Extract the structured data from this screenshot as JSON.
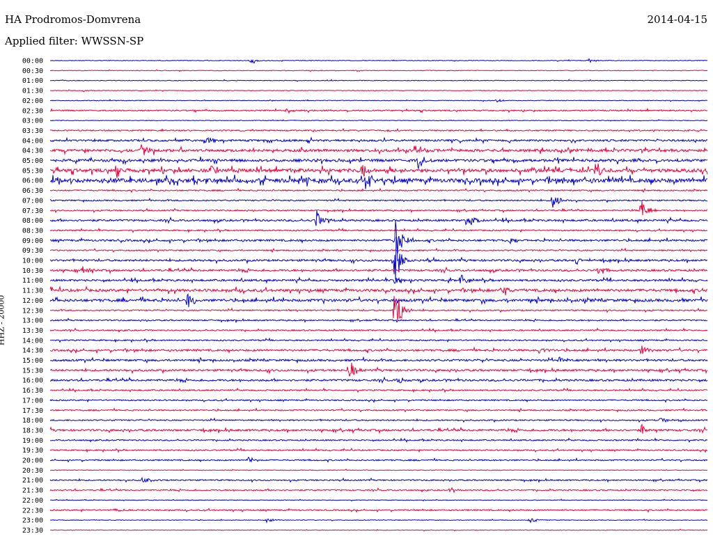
{
  "header": {
    "station": "HA Prodromos-Domvrena",
    "date": "2014-04-15",
    "filter": "Applied filter: WWSSN-SP"
  },
  "channel_label": "HHZ - 20000",
  "colors": {
    "even_trace": "#0000cc",
    "odd_trace": "#e8003a"
  },
  "chart_data": {
    "type": "line",
    "title": "HA Prodromos-Domvrena",
    "subtitle": "Applied filter: WWSSN-SP",
    "ylabel": "HHZ - 20000",
    "xlabel": "",
    "grid": false,
    "legend": "none",
    "rows": [
      "00:00",
      "00:30",
      "01:00",
      "01:30",
      "02:00",
      "02:30",
      "03:00",
      "03:30",
      "04:00",
      "04:30",
      "05:00",
      "05:30",
      "06:00",
      "06:30",
      "07:00",
      "07:30",
      "08:00",
      "08:30",
      "09:00",
      "09:30",
      "10:00",
      "10:30",
      "11:00",
      "11:30",
      "12:00",
      "12:30",
      "13:00",
      "13:30",
      "14:00",
      "14:30",
      "15:00",
      "15:30",
      "16:00",
      "16:30",
      "17:00",
      "17:30",
      "18:00",
      "18:30",
      "19:00",
      "19:30",
      "20:00",
      "20:30",
      "21:00",
      "21:30",
      "22:00",
      "22:30",
      "23:00",
      "23:30"
    ],
    "noise_level": [
      1,
      1,
      1,
      1,
      1,
      2,
      1,
      2,
      3,
      4,
      4,
      5,
      6,
      2,
      2,
      2,
      3,
      2,
      3,
      2,
      3,
      3,
      3,
      4,
      4,
      2,
      2,
      2,
      2,
      3,
      3,
      3,
      3,
      2,
      2,
      2,
      2,
      3,
      2,
      2,
      2,
      1,
      2,
      2,
      1,
      2,
      1,
      1
    ],
    "events": [
      {
        "row": "00:00",
        "pos": 0.305,
        "amp": 5
      },
      {
        "row": "00:00",
        "pos": 0.82,
        "amp": 3
      },
      {
        "row": "01:30",
        "pos": 0.05,
        "amp": 2
      },
      {
        "row": "02:00",
        "pos": 0.68,
        "amp": 3
      },
      {
        "row": "02:30",
        "pos": 0.36,
        "amp": 6
      },
      {
        "row": "04:00",
        "pos": 0.235,
        "amp": 9
      },
      {
        "row": "04:30",
        "pos": 0.14,
        "amp": 14
      },
      {
        "row": "04:30",
        "pos": 0.555,
        "amp": 12
      },
      {
        "row": "05:00",
        "pos": 0.56,
        "amp": 14
      },
      {
        "row": "05:30",
        "pos": 0.1,
        "amp": 12
      },
      {
        "row": "05:30",
        "pos": 0.245,
        "amp": 12
      },
      {
        "row": "05:30",
        "pos": 0.475,
        "amp": 10
      },
      {
        "row": "05:30",
        "pos": 0.83,
        "amp": 11
      },
      {
        "row": "06:00",
        "pos": 0.38,
        "amp": 9
      },
      {
        "row": "06:00",
        "pos": 0.48,
        "amp": 18
      },
      {
        "row": "07:00",
        "pos": 0.765,
        "amp": 12
      },
      {
        "row": "07:30",
        "pos": 0.9,
        "amp": 18
      },
      {
        "row": "08:00",
        "pos": 0.405,
        "amp": 16
      },
      {
        "row": "08:00",
        "pos": 0.635,
        "amp": 18
      },
      {
        "row": "09:00",
        "pos": 0.525,
        "amp": 38
      },
      {
        "row": "09:00",
        "pos": 0.7,
        "amp": 5
      },
      {
        "row": "10:00",
        "pos": 0.525,
        "amp": 40
      },
      {
        "row": "10:00",
        "pos": 0.8,
        "amp": 8
      },
      {
        "row": "10:30",
        "pos": 0.05,
        "amp": 7
      },
      {
        "row": "10:30",
        "pos": 0.835,
        "amp": 8
      },
      {
        "row": "11:00",
        "pos": 0.525,
        "amp": 14
      },
      {
        "row": "11:00",
        "pos": 0.625,
        "amp": 10
      },
      {
        "row": "11:30",
        "pos": 0.69,
        "amp": 7
      },
      {
        "row": "12:00",
        "pos": 0.21,
        "amp": 16
      },
      {
        "row": "12:30",
        "pos": 0.525,
        "amp": 45
      },
      {
        "row": "15:30",
        "pos": 0.455,
        "amp": 20
      },
      {
        "row": "16:00",
        "pos": 0.53,
        "amp": 6
      },
      {
        "row": "14:30",
        "pos": 0.745,
        "amp": 8
      },
      {
        "row": "14:30",
        "pos": 0.9,
        "amp": 8
      },
      {
        "row": "15:00",
        "pos": 0.775,
        "amp": 6
      },
      {
        "row": "18:00",
        "pos": 0.93,
        "amp": 6
      },
      {
        "row": "18:30",
        "pos": 0.9,
        "amp": 9
      },
      {
        "row": "20:00",
        "pos": 0.3,
        "amp": 7
      },
      {
        "row": "21:00",
        "pos": 0.14,
        "amp": 6
      },
      {
        "row": "21:30",
        "pos": 0.61,
        "amp": 4
      },
      {
        "row": "22:30",
        "pos": 0.1,
        "amp": 4
      },
      {
        "row": "23:00",
        "pos": 0.33,
        "amp": 4
      },
      {
        "row": "23:00",
        "pos": 0.73,
        "amp": 4
      }
    ]
  }
}
